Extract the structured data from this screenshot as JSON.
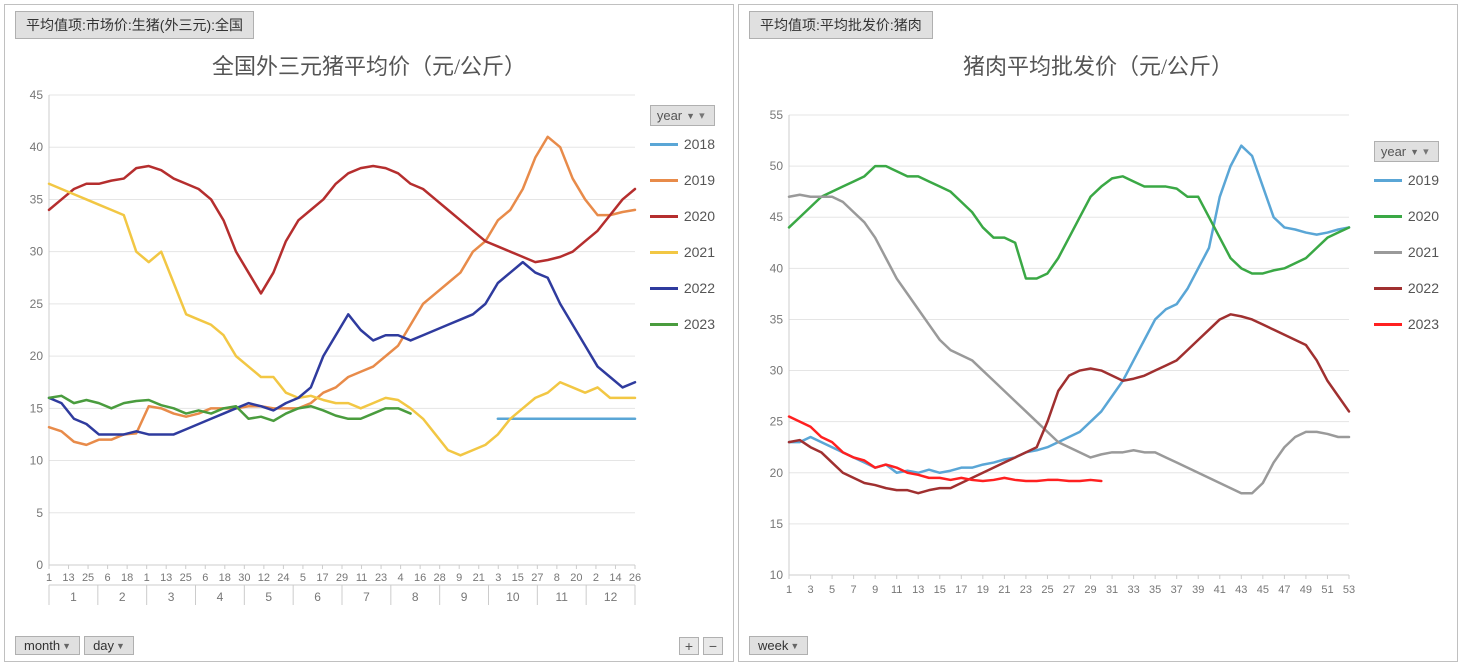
{
  "left": {
    "field_button": "平均值项:市场价:生猪(外三元):全国",
    "title": "全国外三元猪平均价（元/公斤）",
    "legend_filter_label": "year",
    "ylim": [
      0,
      45
    ],
    "yticks": [
      0,
      5,
      10,
      15,
      20,
      25,
      30,
      35,
      40,
      45
    ],
    "x_count": 48,
    "day_labels": [
      "1",
      "13",
      "25",
      "6",
      "18",
      "1",
      "13",
      "25",
      "6",
      "18",
      "30",
      "12",
      "24",
      "5",
      "17",
      "29",
      "11",
      "23",
      "4",
      "16",
      "28",
      "9",
      "21",
      "3",
      "15",
      "27",
      "8",
      "20",
      "2",
      "14",
      "26"
    ],
    "month_labels": [
      "1",
      "2",
      "3",
      "4",
      "5",
      "6",
      "7",
      "8",
      "9",
      "10",
      "11",
      "12"
    ],
    "bottom_btns": [
      "month",
      "day"
    ],
    "grid_color": "#e5e5e5",
    "axis_color": "#cccccc",
    "series": [
      {
        "name": "2018",
        "color": "#5aa6d6",
        "data": [
          14,
          14,
          14,
          14,
          14,
          14,
          14,
          14,
          14,
          14,
          14,
          14,
          14,
          14,
          14,
          14,
          14,
          14,
          14,
          14,
          14,
          14,
          14,
          14,
          14,
          14,
          14,
          14,
          14,
          14,
          14,
          14,
          14,
          14,
          14,
          14,
          14.3,
          14.3,
          14.3,
          14.3,
          14,
          14,
          13.8,
          13.7,
          13.5,
          13.3,
          13.3,
          13.3
        ],
        "start": 36
      },
      {
        "name": "2019",
        "color": "#e88b4a",
        "data": [
          13.2,
          12.8,
          11.8,
          11.5,
          12,
          12,
          12.5,
          12.6,
          15.2,
          15,
          14.5,
          14.2,
          14.5,
          15,
          15,
          15,
          15.2,
          15.2,
          15,
          15,
          15,
          15.5,
          16.5,
          17,
          18,
          18.5,
          19,
          20,
          21,
          23,
          25,
          26,
          27,
          28,
          30,
          31,
          33,
          34,
          36,
          39,
          41,
          40,
          37,
          35,
          33.5,
          33.5,
          33.8,
          34
        ]
      },
      {
        "name": "2020",
        "color": "#b52e2e",
        "data": [
          34,
          35,
          36,
          36.5,
          36.5,
          36.8,
          37,
          38,
          38.2,
          37.8,
          37,
          36.5,
          36,
          35,
          33,
          30,
          28,
          26,
          28,
          31,
          33,
          34,
          35,
          36.5,
          37.5,
          38,
          38.2,
          38,
          37.5,
          36.5,
          36,
          35,
          34,
          33,
          32,
          31,
          30.5,
          30,
          29.5,
          29,
          29.2,
          29.5,
          30,
          31,
          32,
          33.5,
          35,
          36
        ]
      },
      {
        "name": "2021",
        "color": "#f2c744",
        "data": [
          36.5,
          36,
          35.5,
          35,
          34.5,
          34,
          33.5,
          30,
          29,
          30,
          27,
          24,
          23.5,
          23,
          22,
          20,
          19,
          18,
          18,
          16.5,
          16,
          16.2,
          15.8,
          15.5,
          15.5,
          15,
          15.5,
          16,
          15.8,
          15,
          14,
          12.5,
          11,
          10.5,
          11,
          11.5,
          12.5,
          14,
          15,
          16,
          16.5,
          17.5,
          17,
          16.5,
          17,
          16,
          16,
          16
        ]
      },
      {
        "name": "2022",
        "color": "#2f3b9e",
        "data": [
          16,
          15.5,
          14,
          13.5,
          12.5,
          12.5,
          12.5,
          12.8,
          12.5,
          12.5,
          12.5,
          13,
          13.5,
          14,
          14.5,
          15,
          15.5,
          15.2,
          14.8,
          15.5,
          16,
          17,
          20,
          22,
          24,
          22.5,
          21.5,
          22,
          22,
          21.5,
          22,
          22.5,
          23,
          23.5,
          24,
          25,
          27,
          28,
          29,
          28,
          27.5,
          25,
          23,
          21,
          19,
          18,
          17,
          17.5
        ]
      },
      {
        "name": "2023",
        "color": "#4a9c3e",
        "data": [
          16,
          16.2,
          15.5,
          15.8,
          15.5,
          15,
          15.5,
          15.7,
          15.8,
          15.3,
          15,
          14.5,
          14.8,
          14.5,
          15,
          15.2,
          14,
          14.2,
          13.8,
          14.5,
          15,
          15.2,
          14.8,
          14.3,
          14,
          14,
          14.5,
          15,
          15,
          14.5,
          14.3
        ],
        "end": 30
      }
    ]
  },
  "right": {
    "field_button": "平均值项:平均批发价:猪肉",
    "title": "猪肉平均批发价（元/公斤）",
    "legend_filter_label": "year",
    "ylim": [
      10,
      55
    ],
    "yticks": [
      10,
      15,
      20,
      25,
      30,
      35,
      40,
      45,
      50,
      55
    ],
    "x_ticks": [
      1,
      3,
      5,
      7,
      9,
      11,
      13,
      15,
      17,
      19,
      21,
      23,
      25,
      27,
      29,
      31,
      33,
      35,
      37,
      39,
      41,
      43,
      45,
      47,
      49,
      51,
      53
    ],
    "x_count": 53,
    "bottom_btns": [
      "week"
    ],
    "grid_color": "#e5e5e5",
    "axis_color": "#cccccc",
    "series": [
      {
        "name": "2019",
        "color": "#5aa6d6",
        "data": [
          23,
          23,
          23.5,
          23,
          22.5,
          22,
          21.5,
          21,
          20.5,
          20.8,
          20,
          20.2,
          20,
          20.3,
          20,
          20.2,
          20.5,
          20.5,
          20.8,
          21,
          21.3,
          21.5,
          22,
          22.2,
          22.5,
          23,
          23.5,
          24,
          25,
          26,
          27.5,
          29,
          31,
          33,
          35,
          36,
          36.5,
          38,
          40,
          42,
          47,
          50,
          52,
          51,
          48,
          45,
          44,
          43.8,
          43.5,
          43.3,
          43.5,
          43.8,
          44
        ]
      },
      {
        "name": "2020",
        "color": "#3aa845",
        "data": [
          44,
          45,
          46,
          47,
          47.5,
          48,
          48.5,
          49,
          50,
          50,
          49.5,
          49,
          49,
          48.5,
          48,
          47.5,
          46.5,
          45.5,
          44,
          43,
          43,
          42.5,
          39,
          39,
          39.5,
          41,
          43,
          45,
          47,
          48,
          48.8,
          49,
          48.5,
          48,
          48,
          48,
          47.8,
          47,
          47,
          45,
          43,
          41,
          40,
          39.5,
          39.5,
          39.8,
          40,
          40.5,
          41,
          42,
          43,
          43.5,
          44
        ]
      },
      {
        "name": "2021",
        "color": "#9a9a9a",
        "data": [
          47,
          47.2,
          47,
          47,
          47,
          46.5,
          45.5,
          44.5,
          43,
          41,
          39,
          37.5,
          36,
          34.5,
          33,
          32,
          31.5,
          31,
          30,
          29,
          28,
          27,
          26,
          25,
          24,
          23,
          22.5,
          22,
          21.5,
          21.8,
          22,
          22,
          22.2,
          22,
          22,
          21.5,
          21,
          20.5,
          20,
          19.5,
          19,
          18.5,
          18,
          18,
          19,
          21,
          22.5,
          23.5,
          24,
          24,
          23.8,
          23.5,
          23.5
        ]
      },
      {
        "name": "2022",
        "color": "#a03030",
        "data": [
          23,
          23.2,
          22.5,
          22,
          21,
          20,
          19.5,
          19,
          18.8,
          18.5,
          18.3,
          18.3,
          18,
          18.3,
          18.5,
          18.5,
          19,
          19.5,
          20,
          20.5,
          21,
          21.5,
          22,
          22.5,
          25,
          28,
          29.5,
          30,
          30.2,
          30,
          29.5,
          29,
          29.2,
          29.5,
          30,
          30.5,
          31,
          32,
          33,
          34,
          35,
          35.5,
          35.3,
          35,
          34.5,
          34,
          33.5,
          33,
          32.5,
          31,
          29,
          27.5,
          26
        ]
      },
      {
        "name": "2023",
        "color": "#ff2020",
        "data": [
          25.5,
          25,
          24.5,
          23.5,
          23,
          22,
          21.5,
          21.2,
          20.5,
          20.8,
          20.5,
          20,
          19.8,
          19.5,
          19.5,
          19.3,
          19.5,
          19.3,
          19.2,
          19.3,
          19.5,
          19.3,
          19.2,
          19.2,
          19.3,
          19.3,
          19.2,
          19.2,
          19.3,
          19.2,
          19
        ],
        "end": 30
      }
    ]
  }
}
